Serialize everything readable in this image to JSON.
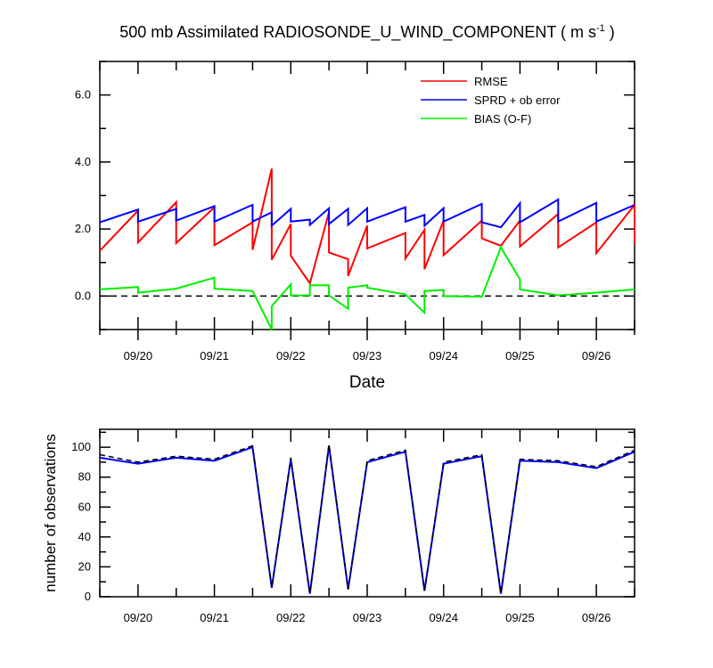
{
  "chart_data": [
    {
      "type": "line",
      "title": "500 mb Assimilated RADIOSONDE_U_WIND_COMPONENT ( m s",
      "title_exponent": "-1",
      "title_close": " )",
      "xlabel": "Date",
      "ylabel": "",
      "x_day_range": [
        19.5,
        26.5
      ],
      "ylim": [
        -1.0,
        7.0
      ],
      "yticks": [
        0.0,
        2.0,
        4.0,
        6.0
      ],
      "ytick_labels": [
        "0.0",
        "2.0",
        "4.0",
        "6.0"
      ],
      "xtick_positions": [
        20,
        21,
        22,
        23,
        24,
        25,
        26
      ],
      "xtick_labels": [
        "09/20",
        "09/21",
        "09/22",
        "09/23",
        "09/24",
        "09/25",
        "09/26"
      ],
      "legend": [
        "RMSE",
        "SPRD + ob error",
        "BIAS (O-F)"
      ],
      "reference_line": 0.0,
      "series": [
        {
          "name": "RMSE",
          "color": "#ff0000",
          "x": [
            19.5,
            20.0,
            20.0,
            20.5,
            20.5,
            21.0,
            21.0,
            21.5,
            21.5,
            21.75,
            21.75,
            22.0,
            22.0,
            22.25,
            22.25,
            22.5,
            22.5,
            22.75,
            22.75,
            23.0,
            23.0,
            23.5,
            23.5,
            23.75,
            23.75,
            24.0,
            24.0,
            24.5,
            24.5,
            24.75,
            24.75,
            25.0,
            25.0,
            25.5,
            25.5,
            26.0,
            26.0,
            26.5,
            26.5
          ],
          "values": [
            1.35,
            2.55,
            1.6,
            2.8,
            1.58,
            2.65,
            1.52,
            2.2,
            1.38,
            3.8,
            1.08,
            2.15,
            1.2,
            0.38,
            0.38,
            2.5,
            1.3,
            1.1,
            0.6,
            2.1,
            1.42,
            1.88,
            1.12,
            1.98,
            0.8,
            2.25,
            1.22,
            2.25,
            1.72,
            1.5,
            1.5,
            2.25,
            1.48,
            2.45,
            1.45,
            2.2,
            1.28,
            2.72,
            1.55
          ]
        },
        {
          "name": "SPRD + ob error",
          "color": "#0000ff",
          "x": [
            19.5,
            20.0,
            20.0,
            20.5,
            20.5,
            21.0,
            21.0,
            21.5,
            21.5,
            21.75,
            21.75,
            22.0,
            22.0,
            22.25,
            22.25,
            22.5,
            22.5,
            22.75,
            22.75,
            23.0,
            23.0,
            23.5,
            23.5,
            23.75,
            23.75,
            24.0,
            24.0,
            24.5,
            24.5,
            24.75,
            24.75,
            25.0,
            25.0,
            25.5,
            25.5,
            26.0,
            26.0,
            26.5
          ],
          "values": [
            2.2,
            2.58,
            2.22,
            2.6,
            2.25,
            2.68,
            2.22,
            2.72,
            2.22,
            2.5,
            2.1,
            2.6,
            2.22,
            2.28,
            2.12,
            2.62,
            2.15,
            2.6,
            2.12,
            2.62,
            2.22,
            2.65,
            2.22,
            2.42,
            2.1,
            2.62,
            2.22,
            2.75,
            2.2,
            2.05,
            2.05,
            2.77,
            2.2,
            2.88,
            2.22,
            2.78,
            2.22,
            2.72
          ]
        },
        {
          "name": "BIAS (O-F)",
          "color": "#00ee00",
          "x": [
            19.5,
            20.0,
            20.0,
            20.5,
            21.0,
            21.0,
            21.5,
            21.75,
            21.75,
            22.0,
            22.0,
            22.25,
            22.25,
            22.5,
            22.5,
            22.75,
            22.75,
            23.0,
            23.0,
            23.5,
            23.75,
            23.75,
            24.0,
            24.0,
            24.5,
            24.75,
            25.0,
            25.0,
            25.5,
            26.0,
            26.5
          ],
          "values": [
            0.2,
            0.27,
            0.1,
            0.22,
            0.55,
            0.22,
            0.15,
            -1.0,
            -0.3,
            0.35,
            0.02,
            0.02,
            0.32,
            0.32,
            0.02,
            -0.38,
            0.25,
            0.32,
            0.25,
            0.05,
            -0.5,
            0.15,
            0.18,
            0.0,
            -0.02,
            1.45,
            0.5,
            0.2,
            0.02,
            0.1,
            0.2
          ]
        }
      ]
    },
    {
      "type": "line",
      "title": "",
      "xlabel": "",
      "ylabel": "number of observations",
      "x_day_range": [
        19.5,
        26.5
      ],
      "ylim": [
        0,
        112
      ],
      "yticks": [
        0,
        20,
        40,
        60,
        80,
        100
      ],
      "ytick_labels": [
        "0",
        "20",
        "40",
        "60",
        "80",
        "100"
      ],
      "xtick_positions": [
        20,
        21,
        22,
        23,
        24,
        25,
        26
      ],
      "xtick_labels": [
        "09/20",
        "09/21",
        "09/22",
        "09/23",
        "09/24",
        "09/25",
        "09/26"
      ],
      "series": [
        {
          "name": "observations (solid)",
          "color": "#0000ff",
          "dash": "solid",
          "x": [
            19.5,
            20.0,
            20.5,
            21.0,
            21.5,
            21.75,
            22.0,
            22.25,
            22.5,
            22.75,
            23.0,
            23.5,
            23.75,
            24.0,
            24.5,
            24.75,
            25.0,
            25.5,
            26.0,
            26.5
          ],
          "values": [
            93,
            89,
            93,
            91,
            100,
            6,
            92,
            2,
            101,
            5,
            90,
            97,
            4,
            89,
            94,
            2,
            91,
            90,
            86,
            97
          ]
        },
        {
          "name": "observations (dashed)",
          "color": "#000000",
          "dash": "dashed",
          "x": [
            19.5,
            20.0,
            20.5,
            21.0,
            21.5,
            21.75,
            22.0,
            22.25,
            22.5,
            22.75,
            23.0,
            23.5,
            23.75,
            24.0,
            24.5,
            24.75,
            25.0,
            25.5,
            26.0,
            26.5
          ],
          "values": [
            95,
            90,
            94,
            92,
            101,
            6,
            93,
            2,
            102,
            5,
            91,
            98,
            4,
            90,
            95,
            2,
            92,
            91,
            87,
            98
          ]
        }
      ]
    }
  ]
}
